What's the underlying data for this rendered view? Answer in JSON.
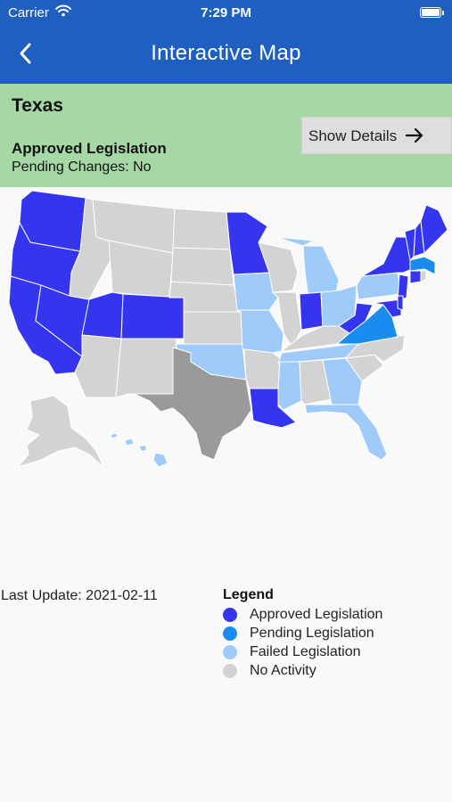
{
  "status_bar": {
    "carrier": "Carrier",
    "time": "7:29 PM"
  },
  "nav": {
    "title": "Interactive Map",
    "back_icon": "chevron-left-icon"
  },
  "selected_state": {
    "name": "Texas",
    "status": "Approved Legislation",
    "pending": "Pending Changes: No"
  },
  "details_button": {
    "label": "Show Details",
    "icon": "arrow-right-icon"
  },
  "colors": {
    "header": "#1f5fbf",
    "panel": "#a6d8a6",
    "approved": "#3535f0",
    "pending": "#1a8cf0",
    "failed": "#9fcbfa",
    "none": "#d3d3d3",
    "selected": "#9a9a9a"
  },
  "last_update": "Last Update: 2021-02-11",
  "legend": {
    "title": "Legend",
    "items": [
      {
        "label": "Approved Legislation",
        "color": "#3535f0"
      },
      {
        "label": "Pending Legislation",
        "color": "#1a8cf0"
      },
      {
        "label": "Failed Legislation",
        "color": "#9fcbfa"
      },
      {
        "label": "No Activity",
        "color": "#d3d3d3"
      }
    ]
  },
  "states": {
    "WA": "approved",
    "OR": "approved",
    "CA": "approved",
    "NV": "approved",
    "UT": "approved",
    "CO": "approved",
    "MN": "approved",
    "IN": "approved",
    "WV": "approved",
    "LA": "approved",
    "NY": "approved",
    "VT": "approved",
    "NH": "approved",
    "ME": "approved",
    "NJ": "approved",
    "CT": "approved",
    "MD": "approved",
    "DE": "approved",
    "VA": "pending",
    "MA": "pending",
    "IA": "failed",
    "MO": "failed",
    "OK": "failed",
    "AR": "none",
    "MI": "failed",
    "WI": "none",
    "OH": "failed",
    "PA": "failed",
    "KY": "none",
    "TN": "failed",
    "MS": "failed",
    "AL": "none",
    "GA": "failed",
    "FL": "failed",
    "HI": "failed",
    "RI": "none",
    "ID": "none",
    "MT": "none",
    "WY": "none",
    "ND": "none",
    "SD": "none",
    "NE": "none",
    "KS": "none",
    "AZ": "none",
    "NM": "none",
    "IL": "none",
    "NC": "none",
    "SC": "none",
    "AK": "none",
    "TX": "selected"
  }
}
